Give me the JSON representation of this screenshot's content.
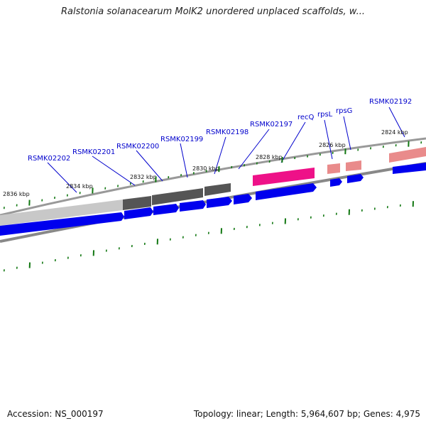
{
  "title": "Ralstonia solanacearum MolK2 unordered unplaced scaffolds, w...",
  "footer": {
    "accession": "Accession: NS_000197",
    "stats": "Topology: linear; Length: 5,964,607 bp; Genes: 4,975"
  },
  "gene_labels": [
    "RSMK02202",
    "RSMK02201",
    "RSMK02200",
    "RSMK02199",
    "RSMK02198",
    "RSMK02197",
    "recQ",
    "rpsL",
    "rpsG",
    "RSMK02192"
  ],
  "kbp_labels": [
    "2836 kbp",
    "2834 kbp",
    "2832 kbp",
    "2830 kbp",
    "2828 kbp",
    "2826 kbp",
    "2824 kbp"
  ],
  "colors": {
    "gene_blue": "#0000ee",
    "label_blue": "#0000cc",
    "tick_green": "#117711",
    "recq_magenta": "#ee1188",
    "rps_pink": "#e98b8b",
    "dark_gray": "#555555",
    "light_gray": "#c8c8c8"
  }
}
